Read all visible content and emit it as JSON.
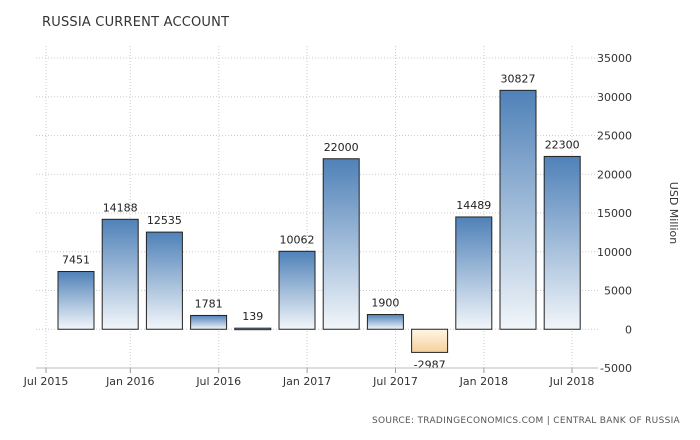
{
  "chart_data": {
    "type": "bar",
    "title": "RUSSIA CURRENT ACCOUNT",
    "ylabel": "USD Million",
    "source": "SOURCE: TRADINGECONOMICS.COM | CENTRAL BANK OF RUSSIA",
    "ylim": [
      -5000,
      35000
    ],
    "y_ticks": [
      "35000",
      "30000",
      "25000",
      "20000",
      "15000",
      "10000",
      "5000",
      "0",
      "-5000"
    ],
    "x_ticks": [
      "Jul 2015",
      "Jan 2016",
      "Jul 2016",
      "Jan 2017",
      "Jul 2017",
      "Jan 2018",
      "Jul 2018"
    ],
    "values": [
      7451,
      14188,
      12535,
      1781,
      139,
      10062,
      22000,
      1900,
      -2987,
      14489,
      30827,
      22300
    ],
    "value_labels": [
      "7451",
      "14188",
      "12535",
      "1781",
      "139",
      "10062",
      "22000",
      "1900",
      "-2987",
      "14489",
      "30827",
      "22300"
    ],
    "grid": true,
    "colors": {
      "positive_top": "#4f81b8",
      "positive_bottom": "#f2f6fa",
      "negative_top": "#fff6e6",
      "negative_bottom": "#f5d09a",
      "outline": "#222222",
      "grid": "#cccccc"
    }
  }
}
